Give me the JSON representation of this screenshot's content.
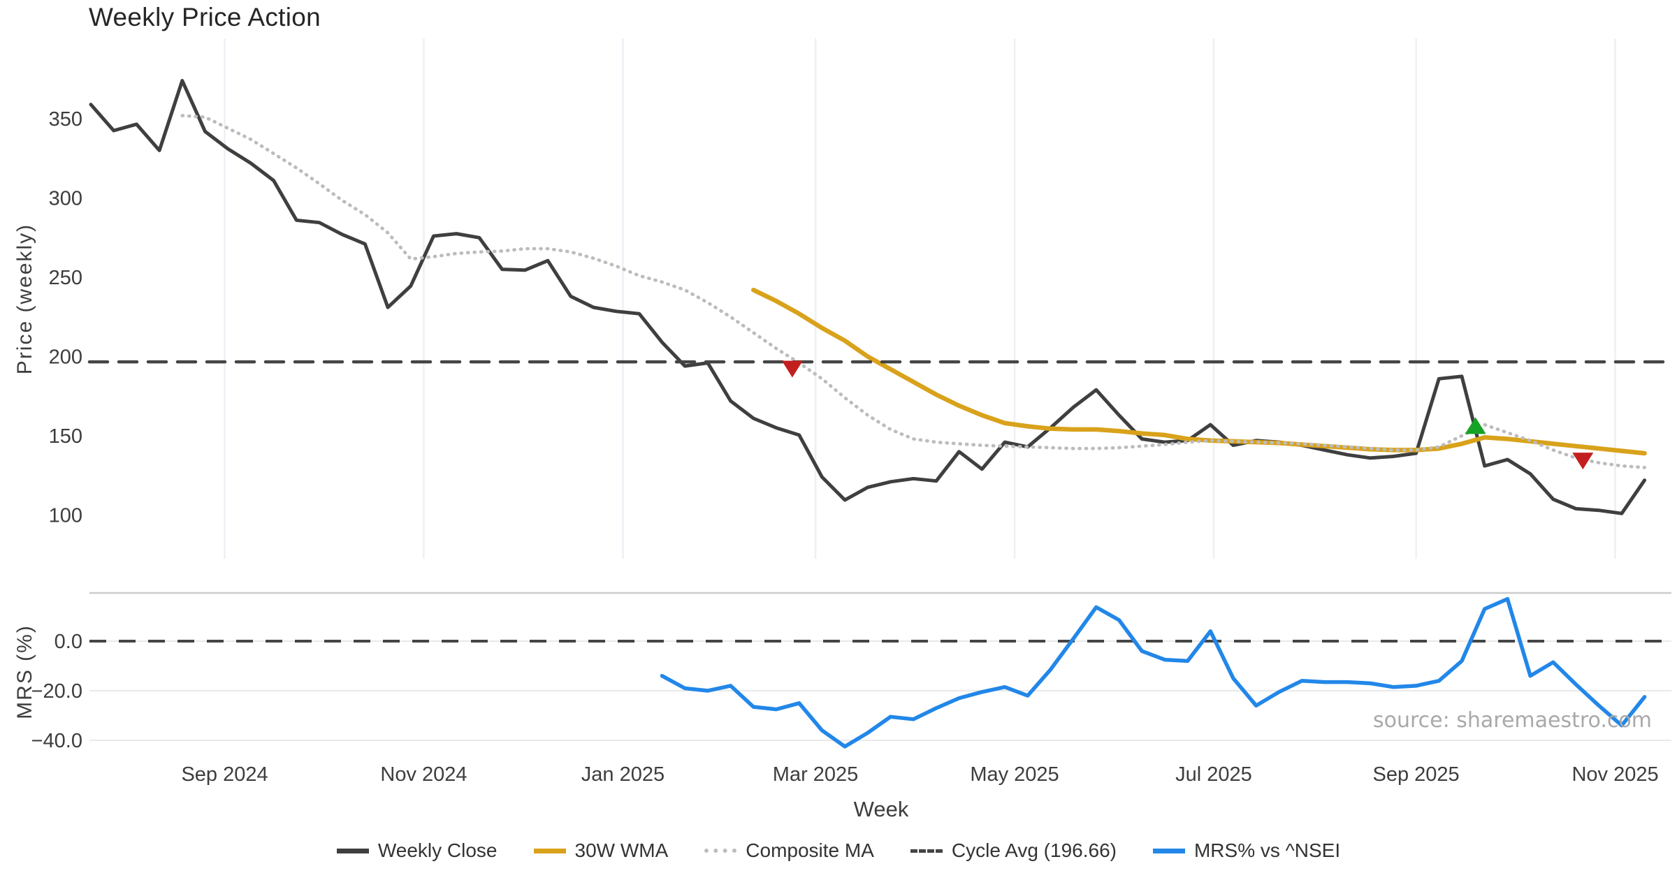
{
  "title": "Weekly Price Action",
  "source": "source: sharemaestro.com",
  "chart_data": {
    "type": "line",
    "title": "Weekly Price Action",
    "xlabel": "Week",
    "frequency": "weekly",
    "start_date": "2024-07-22",
    "num_weeks": 69,
    "grid": "light vertical gridlines in price panel, light horizontal gridlines in MRS panel",
    "legend_position": "bottom-center",
    "x_ticks": [
      {
        "label": "Sep 2024",
        "date": "2024-09-01"
      },
      {
        "label": "Nov 2024",
        "date": "2024-11-01"
      },
      {
        "label": "Jan 2025",
        "date": "2025-01-01"
      },
      {
        "label": "Mar 2025",
        "date": "2025-03-01"
      },
      {
        "label": "May 2025",
        "date": "2025-05-01"
      },
      {
        "label": "Jul 2025",
        "date": "2025-07-01"
      },
      {
        "label": "Sep 2025",
        "date": "2025-09-01"
      },
      {
        "label": "Nov 2025",
        "date": "2025-11-01"
      }
    ],
    "panels": {
      "price": {
        "ylabel": "Price (weekly)",
        "ylim": [
          72,
          401
        ],
        "yticks": [
          {
            "label": "350",
            "value": 350
          },
          {
            "label": "300",
            "value": 300
          },
          {
            "label": "250",
            "value": 250
          },
          {
            "label": "200",
            "value": 200
          },
          {
            "label": "150",
            "value": 150
          },
          {
            "label": "100",
            "value": 100
          }
        ]
      },
      "mrs": {
        "ylabel": "MRS (%)",
        "ylim": [
          -46,
          19
        ],
        "yticks": [
          {
            "label": "0.0",
            "value": 0
          },
          {
            "label": "−20.0",
            "value": -20
          },
          {
            "label": "−40.0",
            "value": -40
          }
        ]
      }
    },
    "series": [
      {
        "name": "Weekly Close",
        "panel": "price",
        "color": "#3f3f3f",
        "style": "solid",
        "width": 5,
        "values": [
          359,
          342.5,
          346.5,
          330,
          374,
          342,
          331,
          322,
          311,
          286,
          284.5,
          277,
          271,
          231,
          244.5,
          276,
          277.5,
          275,
          255,
          254.5,
          260.5,
          238,
          231,
          228.5,
          227,
          209,
          194,
          196,
          172,
          161,
          155,
          150.5,
          124,
          109.5,
          117.5,
          121,
          123,
          121.5,
          140,
          129,
          146,
          143,
          155,
          168,
          179,
          163,
          148,
          146,
          147,
          157,
          144,
          147,
          146,
          144,
          141,
          138,
          136,
          137,
          139,
          186,
          187.5,
          131,
          135,
          126,
          110,
          104,
          103,
          101,
          122
        ]
      },
      {
        "name": "30W WMA",
        "panel": "price",
        "color": "#d9a21b",
        "style": "solid",
        "width": 6.5,
        "values": [
          null,
          null,
          null,
          null,
          null,
          null,
          null,
          null,
          null,
          null,
          null,
          null,
          null,
          null,
          null,
          null,
          null,
          null,
          null,
          null,
          null,
          null,
          null,
          null,
          null,
          null,
          null,
          null,
          null,
          242,
          235,
          227,
          218,
          210,
          200,
          192,
          184,
          176,
          169,
          163,
          158,
          156,
          154.5,
          154,
          154,
          153,
          151.5,
          150.5,
          148,
          147,
          146.5,
          146,
          145.5,
          144.5,
          143.5,
          142.5,
          141.5,
          141,
          141,
          142,
          145,
          149,
          148,
          146.5,
          145,
          143.5,
          142,
          140.5,
          139
        ]
      },
      {
        "name": "Composite MA",
        "panel": "price",
        "color": "#bcbcbc",
        "style": "dotted",
        "width": 4.8,
        "values": [
          null,
          null,
          null,
          null,
          352,
          351,
          344,
          337,
          328,
          319,
          309,
          298.5,
          289.5,
          278,
          261.5,
          263,
          265,
          266,
          266.5,
          268,
          268,
          266,
          262,
          257,
          251,
          247,
          242,
          234,
          225,
          215,
          205,
          196,
          186,
          174,
          163,
          154,
          148,
          146,
          145,
          144,
          143.5,
          143,
          142.5,
          142,
          142,
          142.5,
          143.5,
          144.5,
          146,
          147,
          146.5,
          146,
          145.5,
          145,
          144,
          143,
          142,
          141,
          141,
          143,
          150,
          157,
          152,
          147,
          141,
          136,
          133,
          131,
          130
        ]
      },
      {
        "name": "Cycle Avg (196.66)",
        "panel": "price",
        "color": "#454545",
        "style": "dashed",
        "width": 4.5,
        "constant": 196.66
      },
      {
        "name": "MRS% vs ^NSEI",
        "panel": "mrs",
        "color": "#2287e8",
        "style": "solid",
        "width": 5.5,
        "values": [
          null,
          null,
          null,
          null,
          null,
          null,
          null,
          null,
          null,
          null,
          null,
          null,
          null,
          null,
          null,
          null,
          null,
          null,
          null,
          null,
          null,
          null,
          null,
          null,
          null,
          -14,
          -19,
          -20,
          -18,
          -26.5,
          -27.5,
          -25,
          -36,
          -42.5,
          -37,
          -30.5,
          -31.5,
          -27,
          -23,
          -20.5,
          -18.5,
          -22,
          -11.5,
          1,
          13.7,
          8.5,
          -4,
          -7.5,
          -8,
          4,
          -15,
          -26,
          -20.5,
          -16,
          -16.5,
          -16.5,
          -17,
          -18.5,
          -18,
          -16,
          -8,
          13,
          17,
          -14,
          -8.5,
          -17.5,
          -26,
          -34,
          -22.5
        ]
      }
    ],
    "zero_line": {
      "panel": "mrs",
      "value": 0,
      "style": "dashed",
      "color": "#454545"
    },
    "markers": [
      {
        "week": 30.7,
        "value": 192.5,
        "shape": "triangle-down",
        "color": "#c41f1f",
        "meaning": "sell-signal"
      },
      {
        "week": 60.6,
        "value": 156,
        "shape": "triangle-up",
        "color": "#15a325",
        "meaning": "buy-signal"
      },
      {
        "week": 65.3,
        "value": 134.5,
        "shape": "triangle-down",
        "color": "#c41f1f",
        "meaning": "sell-signal"
      }
    ],
    "colors": {
      "background": "#ffffff",
      "grid_vertical": "#edf0f4",
      "grid_horizontal": "#e9e9e9",
      "panel_border": "#cccccc",
      "tick_text": "#3d3d3d",
      "title_text": "#262626",
      "source_text": "#a9a9a9"
    }
  }
}
